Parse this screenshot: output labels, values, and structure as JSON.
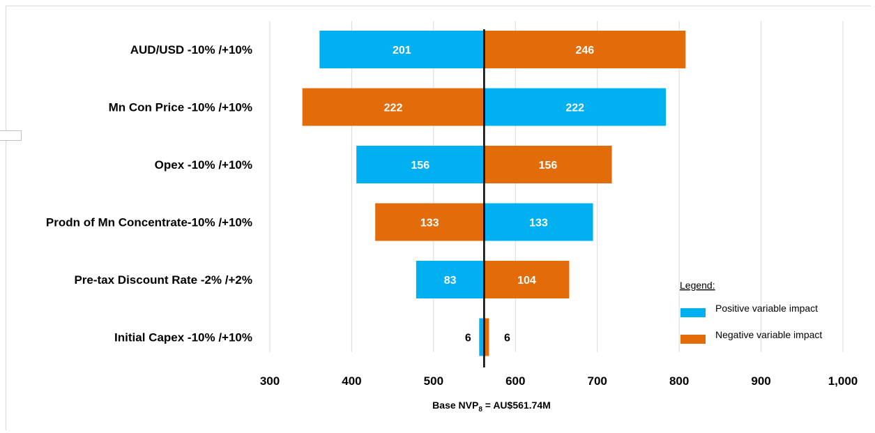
{
  "chart_data": {
    "type": "bar",
    "orientation": "horizontal",
    "subtype": "tornado",
    "base_value": 561.74,
    "base_label_main": "Base NVP",
    "base_label_sub": "8",
    "base_label_rest": " = AU$561.74M",
    "xlim": [
      300,
      1000
    ],
    "xticks": [
      300,
      400,
      500,
      600,
      700,
      800,
      900,
      1000
    ],
    "xtick_labels": [
      "300",
      "400",
      "500",
      "600",
      "700",
      "800",
      "900",
      "1,000"
    ],
    "grid": "vertical",
    "categories": [
      "AUD/USD -10% /+10%",
      "Mn Con Price -10% /+10%",
      "Opex -10% /+10%",
      "Prodn of Mn Concentrate-10% /+10%",
      "Pre-tax Discount Rate -2% /+2%",
      "Initial Capex -10% /+10%"
    ],
    "left_bars": [
      {
        "value": 201,
        "label": "201",
        "impact": "positive"
      },
      {
        "value": 222,
        "label": "222",
        "impact": "negative"
      },
      {
        "value": 156,
        "label": "156",
        "impact": "positive"
      },
      {
        "value": 133,
        "label": "133",
        "impact": "negative"
      },
      {
        "value": 83,
        "label": "83",
        "impact": "positive"
      },
      {
        "value": 6,
        "label": "6",
        "impact": "positive"
      }
    ],
    "right_bars": [
      {
        "value": 246,
        "label": "246",
        "impact": "negative"
      },
      {
        "value": 222,
        "label": "222",
        "impact": "positive"
      },
      {
        "value": 156,
        "label": "156",
        "impact": "negative"
      },
      {
        "value": 133,
        "label": "133",
        "impact": "positive"
      },
      {
        "value": 104,
        "label": "104",
        "impact": "negative"
      },
      {
        "value": 6,
        "label": "6",
        "impact": "negative"
      }
    ],
    "colors": {
      "positive": "#00b0f0",
      "negative": "#e36c0a"
    },
    "legend": {
      "title": "Legend:",
      "placement": "bottom-right",
      "entries": [
        {
          "label": "Positive variable impact",
          "impact": "positive"
        },
        {
          "label": "Negative variable impact",
          "impact": "negative"
        }
      ]
    }
  }
}
